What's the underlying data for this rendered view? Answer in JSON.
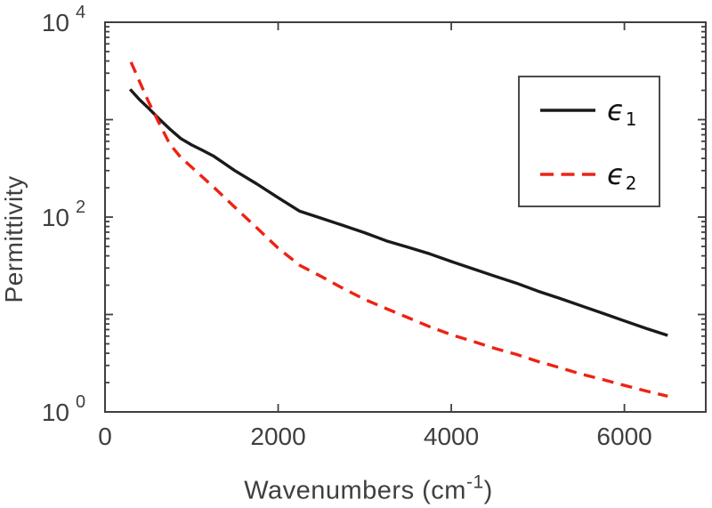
{
  "figure": {
    "background": "#ffffff",
    "axis_color": "#3f3f3f",
    "text_color": "#3f3f3f"
  },
  "chart_data": {
    "type": "line",
    "title": "",
    "xlabel": "Wavenumbers (cm⁻¹)",
    "xlabel_parts": {
      "prefix": "Wavenumbers (cm",
      "sup": "-1",
      "suffix": ")"
    },
    "ylabel": "Permittivity",
    "x_axis": {
      "min": 0,
      "max": 6940,
      "tick_values": [
        0,
        2000,
        4000,
        6000
      ],
      "tick_labels": [
        "0",
        "2000",
        "4000",
        "6000"
      ]
    },
    "y_axis": {
      "scale": "log",
      "min": 1,
      "max": 10000,
      "tick_base": "10",
      "major_exponents": [
        0,
        1,
        2,
        3,
        4
      ],
      "labeled_exponents": [
        "0",
        "2",
        "4"
      ],
      "minor_multiples": [
        2,
        3,
        4,
        5,
        6,
        7,
        8,
        9
      ]
    },
    "grid": "off",
    "legend_position": "northeast",
    "series": [
      {
        "name": "epsilon_1",
        "label_glyph": "ϵ",
        "label_sub": "1",
        "color": "#1a1a1a",
        "style": "solid",
        "x": [
          290,
          400,
          500,
          625,
          750,
          875,
          1000,
          1125,
          1250,
          1500,
          1750,
          2000,
          2250,
          2500,
          2750,
          3000,
          3250,
          3500,
          3750,
          4000,
          4250,
          4500,
          4750,
          5000,
          5250,
          5500,
          5750,
          6000,
          6250,
          6500
        ],
        "y": [
          2050,
          1600,
          1320,
          1020,
          800,
          640,
          550,
          485,
          425,
          300,
          220,
          158,
          115,
          97,
          82,
          69,
          57,
          49,
          42,
          35,
          29.5,
          24.8,
          21,
          17.4,
          14.7,
          12.3,
          10.3,
          8.6,
          7.2,
          6.1
        ]
      },
      {
        "name": "epsilon_2",
        "label_glyph": "ϵ",
        "label_sub": "2",
        "color": "#ee2213",
        "style": "dashed",
        "x": [
          300,
          400,
          500,
          625,
          750,
          875,
          1000,
          1125,
          1250,
          1500,
          1750,
          2000,
          2250,
          2500,
          2750,
          3000,
          3250,
          3500,
          3750,
          4000,
          4250,
          4500,
          4750,
          5000,
          5250,
          5500,
          5750,
          6000,
          6250,
          6500
        ],
        "y": [
          3900,
          2450,
          1550,
          920,
          560,
          410,
          325,
          258,
          205,
          126,
          78,
          48,
          32,
          24.5,
          18.5,
          14.3,
          11.5,
          9.3,
          7.5,
          6.2,
          5.3,
          4.5,
          3.9,
          3.3,
          2.85,
          2.45,
          2.15,
          1.87,
          1.64,
          1.45
        ]
      }
    ]
  }
}
